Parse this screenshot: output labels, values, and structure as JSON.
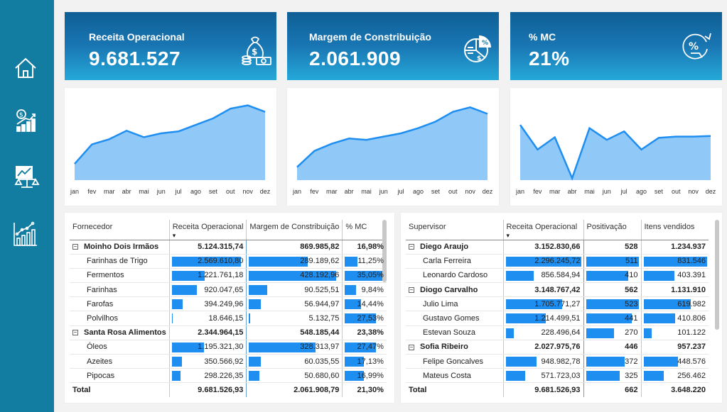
{
  "nav": {
    "icons": [
      "home-icon",
      "revenue-growth-icon",
      "balance-scale-icon",
      "line-chart-icon"
    ]
  },
  "kpis": [
    {
      "title": "Receita Operacional",
      "value": "9.681.527",
      "icon": "money-bag-icon"
    },
    {
      "title": "Margem de Constribuição",
      "value": "2.061.909",
      "icon": "pie-chart-icon"
    },
    {
      "title": "% MC",
      "value": "21%",
      "icon": "percent-growth-icon"
    }
  ],
  "chart_data": [
    {
      "type": "area",
      "categories": [
        "jan",
        "fev",
        "mar",
        "abr",
        "mai",
        "jun",
        "jul",
        "ago",
        "set",
        "out",
        "nov",
        "dez"
      ],
      "values": [
        0.25,
        0.55,
        0.63,
        0.76,
        0.66,
        0.72,
        0.75,
        0.85,
        0.95,
        1.1,
        1.15,
        1.05
      ]
    },
    {
      "type": "area",
      "categories": [
        "jan",
        "fev",
        "mar",
        "abr",
        "mai",
        "jun",
        "jul",
        "ago",
        "set",
        "out",
        "nov",
        "dez"
      ],
      "values": [
        0.2,
        0.45,
        0.56,
        0.64,
        0.62,
        0.67,
        0.72,
        0.8,
        0.9,
        1.05,
        1.12,
        1.02
      ]
    },
    {
      "type": "area",
      "categories": [
        "jan",
        "fev",
        "mar",
        "abr",
        "mai",
        "jun",
        "jul",
        "ago",
        "set",
        "out",
        "nov",
        "dez"
      ],
      "values": [
        0.85,
        0.47,
        0.66,
        0.03,
        0.8,
        0.62,
        0.75,
        0.47,
        0.65,
        0.67,
        0.67,
        0.68
      ]
    }
  ],
  "colors": {
    "sidebar": "#127ca1",
    "bar": "#1f8ef1",
    "area_fill": "#90c8f8",
    "area_line": "#1f8ef1"
  },
  "fornecedor_table": {
    "headers": [
      "Fornecedor",
      "Receita Operacional",
      "Margem de Constribuição",
      "% MC"
    ],
    "rows": [
      {
        "type": "group",
        "toggle": "⊟",
        "label": "Moinho Dois Irmãos",
        "c1": "5.124.315,74",
        "c2": "869.985,82",
        "c3": "16,98%",
        "b1": 0,
        "b2": 0,
        "b3": 0
      },
      {
        "type": "child",
        "label": "Farinhas de Trigo",
        "c1": "2.569.610,80",
        "c2": "289.189,62",
        "c3": "11,25%",
        "b1": 1.0,
        "b2": 0.675,
        "b3": 0.32
      },
      {
        "type": "child",
        "label": "Fermentos",
        "c1": "1.221.761,18",
        "c2": "428.192,96",
        "c3": "35,05%",
        "b1": 0.475,
        "b2": 1.0,
        "b3": 1.0
      },
      {
        "type": "child",
        "label": "Farinhas",
        "c1": "920.047,65",
        "c2": "90.525,51",
        "c3": "9,84%",
        "b1": 0.36,
        "b2": 0.21,
        "b3": 0.28
      },
      {
        "type": "child",
        "label": "Farofas",
        "c1": "394.249,96",
        "c2": "56.944,97",
        "c3": "14,44%",
        "b1": 0.155,
        "b2": 0.135,
        "b3": 0.41
      },
      {
        "type": "child",
        "label": "Polvilhos",
        "c1": "18.646,15",
        "c2": "5.132,75",
        "c3": "27,53%",
        "b1": 0.01,
        "b2": 0.015,
        "b3": 0.78
      },
      {
        "type": "group",
        "toggle": "⊟",
        "label": "Santa Rosa Alimentos",
        "c1": "2.344.964,15",
        "c2": "548.185,44",
        "c3": "23,38%",
        "b1": 0,
        "b2": 0,
        "b3": 0
      },
      {
        "type": "child",
        "label": "Óleos",
        "c1": "1.195.321,30",
        "c2": "328.313,97",
        "c3": "27,47%",
        "b1": 0.465,
        "b2": 0.765,
        "b3": 0.78
      },
      {
        "type": "child",
        "label": "Azeites",
        "c1": "350.566,92",
        "c2": "60.035,55",
        "c3": "17,13%",
        "b1": 0.14,
        "b2": 0.14,
        "b3": 0.49
      },
      {
        "type": "child",
        "label": "Pipocas",
        "c1": "298.226,35",
        "c2": "50.680,60",
        "c3": "16,99%",
        "b1": 0.12,
        "b2": 0.12,
        "b3": 0.48
      },
      {
        "type": "total",
        "label": "Total",
        "c1": "9.681.526,93",
        "c2": "2.061.908,79",
        "c3": "21,30%",
        "b1": 0,
        "b2": 0,
        "b3": 0
      }
    ]
  },
  "supervisor_table": {
    "headers": [
      "Supervisor",
      "Receita Operacional",
      "Positivação",
      "Itens vendidos"
    ],
    "rows": [
      {
        "type": "group",
        "toggle": "⊟",
        "label": "Diego Araujo",
        "c1": "3.152.830,66",
        "c2": "528",
        "c3": "1.234.937",
        "b1": 0,
        "b2": 0,
        "b3": 0
      },
      {
        "type": "child",
        "label": "Carla Ferreira",
        "c1": "2.296.245,72",
        "c2": "511",
        "c3": "831.546",
        "b1": 1.0,
        "b2": 1.0,
        "b3": 1.0
      },
      {
        "type": "child",
        "label": "Leonardo Cardoso",
        "c1": "856.584,94",
        "c2": "410",
        "c3": "403.391",
        "b1": 0.37,
        "b2": 0.8,
        "b3": 0.485
      },
      {
        "type": "group",
        "toggle": "⊟",
        "label": "Diogo Carvalho",
        "c1": "3.148.767,42",
        "c2": "562",
        "c3": "1.131.910",
        "b1": 0,
        "b2": 0,
        "b3": 0
      },
      {
        "type": "child",
        "label": "Julio Lima",
        "c1": "1.705.771,27",
        "c2": "523",
        "c3": "619.982",
        "b1": 0.745,
        "b2": 1.0,
        "b3": 0.745
      },
      {
        "type": "child",
        "label": "Gustavo Gomes",
        "c1": "1.214.499,51",
        "c2": "441",
        "c3": "410.806",
        "b1": 0.53,
        "b2": 0.86,
        "b3": 0.494
      },
      {
        "type": "child",
        "label": "Estevan Souza",
        "c1": "228.496,64",
        "c2": "270",
        "c3": "101.122",
        "b1": 0.1,
        "b2": 0.53,
        "b3": 0.12
      },
      {
        "type": "group",
        "toggle": "⊟",
        "label": "Sofia Ribeiro",
        "c1": "2.027.975,76",
        "c2": "446",
        "c3": "957.237",
        "b1": 0,
        "b2": 0,
        "b3": 0
      },
      {
        "type": "child",
        "label": "Felipe Goncalves",
        "c1": "948.982,78",
        "c2": "372",
        "c3": "448.576",
        "b1": 0.41,
        "b2": 0.73,
        "b3": 0.54
      },
      {
        "type": "child",
        "label": "Mateus Costa",
        "c1": "571.723,03",
        "c2": "325",
        "c3": "256.462",
        "b1": 0.25,
        "b2": 0.64,
        "b3": 0.31
      },
      {
        "type": "total",
        "label": "Total",
        "c1": "9.681.526,93",
        "c2": "662",
        "c3": "3.648.220",
        "b1": 0,
        "b2": 0,
        "b3": 0
      }
    ]
  }
}
